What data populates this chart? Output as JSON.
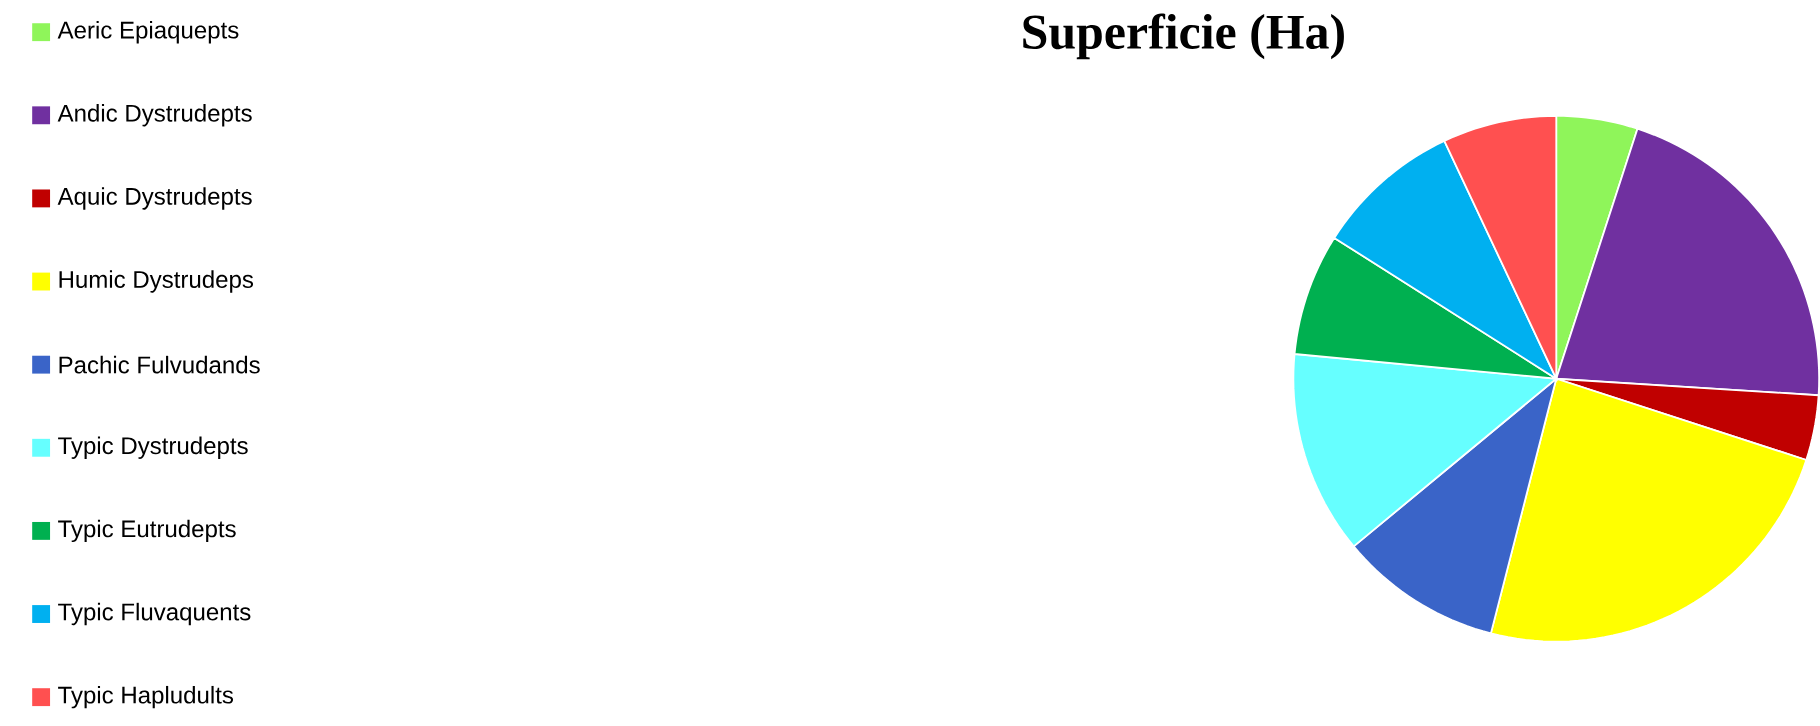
{
  "chart_data": {
    "type": "pie",
    "title": "Superficie (Ha)",
    "categories": [
      "Aeric Epiaquepts",
      "Andic Dystrudepts",
      "Aquic Dystrudepts",
      "Humic Dystrudeps",
      "Pachic Fulvudands",
      "Typic Dystrudepts",
      "Typic Eutrudepts",
      "Typic Fluvaquents",
      "Typic Hapludults"
    ],
    "values": [
      5,
      21,
      4,
      24,
      10,
      12.5,
      7.5,
      9,
      7
    ],
    "colors": [
      "#8ff55a",
      "#7030a0",
      "#c00000",
      "#ffff00",
      "#3a64c8",
      "#66ffff",
      "#00b050",
      "#00b0f0",
      "#ff5050"
    ],
    "legend": "left"
  }
}
